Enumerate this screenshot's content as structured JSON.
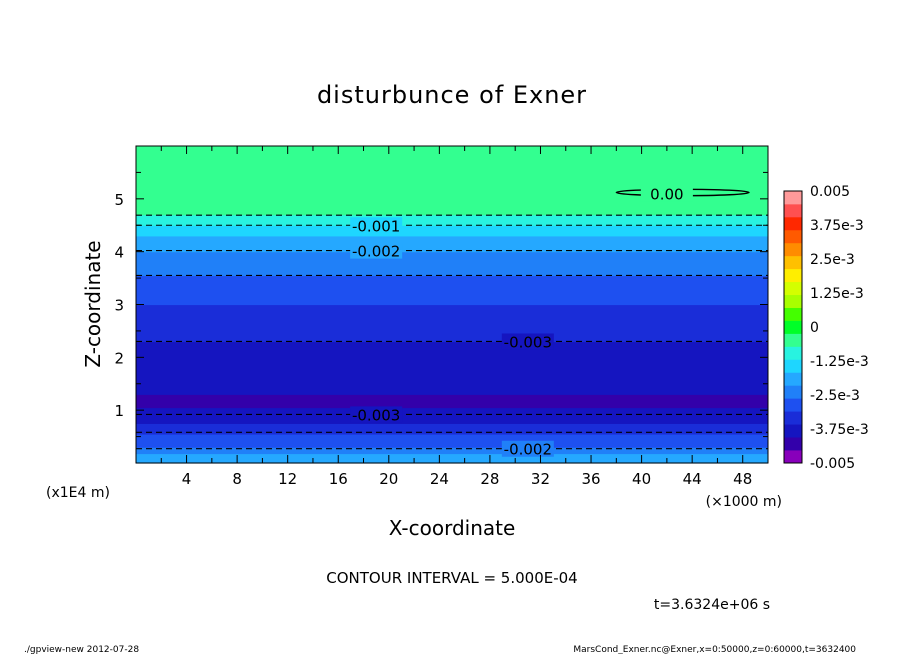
{
  "chart_data": {
    "type": "heatmap",
    "title": "disturbunce of Exner",
    "xlabel": "X-coordinate",
    "ylabel": "Z-coordinate",
    "x_unit": "(×1000 m)",
    "y_unit": "(x1E4 m)",
    "xlim": [
      0,
      50
    ],
    "ylim": [
      0,
      6
    ],
    "x_ticks": [
      "4",
      "8",
      "12",
      "16",
      "20",
      "24",
      "28",
      "32",
      "36",
      "40",
      "44",
      "48"
    ],
    "x_tick_values": [
      4,
      8,
      12,
      16,
      20,
      24,
      28,
      32,
      36,
      40,
      44,
      48
    ],
    "y_ticks": [
      "1",
      "2",
      "3",
      "4",
      "5"
    ],
    "y_tick_values": [
      1,
      2,
      3,
      4,
      5
    ],
    "value_bands": [
      {
        "z_from": 0.0,
        "z_to": 0.18,
        "value": -0.00175
      },
      {
        "z_from": 0.18,
        "z_to": 0.3,
        "value": -0.00225
      },
      {
        "z_from": 0.3,
        "z_to": 0.55,
        "value": -0.00275
      },
      {
        "z_from": 0.55,
        "z_to": 0.75,
        "value": -0.00325
      },
      {
        "z_from": 0.75,
        "z_to": 1.05,
        "value": -0.00375
      },
      {
        "z_from": 1.05,
        "z_to": 1.3,
        "value": -0.00425
      },
      {
        "z_from": 1.3,
        "z_to": 2.3,
        "value": -0.00375
      },
      {
        "z_from": 2.3,
        "z_to": 3.0,
        "value": -0.00325
      },
      {
        "z_from": 3.0,
        "z_to": 3.55,
        "value": -0.00275
      },
      {
        "z_from": 3.55,
        "z_to": 4.0,
        "value": -0.00225
      },
      {
        "z_from": 4.0,
        "z_to": 4.3,
        "value": -0.00175
      },
      {
        "z_from": 4.3,
        "z_to": 4.5,
        "value": -0.00125
      },
      {
        "z_from": 4.5,
        "z_to": 4.7,
        "value": -0.00075
      },
      {
        "z_from": 4.7,
        "z_to": 6.0,
        "value": -0.00025
      }
    ],
    "contour_labels": [
      {
        "text": "0.00",
        "x": 42,
        "z": 5.1
      },
      {
        "text": "-0.001",
        "x": 19,
        "z": 4.5
      },
      {
        "text": "-0.002",
        "x": 19,
        "z": 4.02
      },
      {
        "text": "-0.003",
        "x": 31,
        "z": 2.3
      },
      {
        "text": "-0.003",
        "x": 19,
        "z": 0.92
      },
      {
        "text": "-0.002",
        "x": 31,
        "z": 0.27
      }
    ],
    "dashed_contour_levels_z": [
      4.69,
      4.5,
      4.02,
      3.55,
      2.3,
      0.92,
      0.58,
      0.27
    ],
    "zero_contour": {
      "x_from": 38.0,
      "x_to": 48.5,
      "z": 5.12
    },
    "colorbar": {
      "labels": [
        "0.005",
        "3.75e-3",
        "2.5e-3",
        "1.25e-3",
        "0",
        "-1.25e-3",
        "-2.5e-3",
        "-3.75e-3",
        "-0.005"
      ],
      "label_values": [
        0.005,
        0.00375,
        0.0025,
        0.00125,
        0,
        -0.00125,
        -0.0025,
        -0.00375,
        -0.005
      ],
      "levels": [
        -0.005,
        -0.0045,
        -0.004,
        -0.0035,
        -0.003,
        -0.0025,
        -0.002,
        -0.0015,
        -0.001,
        -0.0005,
        0,
        0.0005,
        0.001,
        0.0015,
        0.002,
        0.0025,
        0.003,
        0.0035,
        0.004,
        0.0045,
        0.005
      ],
      "colors": [
        "#8800bb",
        "#3300aa",
        "#1515c0",
        "#1a2dd8",
        "#1e50f0",
        "#2080f8",
        "#25a8ff",
        "#1ed6ff",
        "#28f3e0",
        "#33ff90",
        "#00ff28",
        "#44ff00",
        "#a8ff00",
        "#d4ff00",
        "#ffee00",
        "#ffc000",
        "#ff8c00",
        "#ff5a00",
        "#ff2800",
        "#ff5050",
        "#ff9a9a"
      ]
    },
    "grid": false,
    "legend": "right"
  },
  "labels": {
    "contour_interval": "CONTOUR INTERVAL = 5.000E-04",
    "time": "t=3.6324e+06 s",
    "footer_left": "./gpview-new  2012-07-28",
    "footer_right": "MarsCond_Exner.nc@Exner,x=0:50000,z=0:60000,t=3632400"
  }
}
